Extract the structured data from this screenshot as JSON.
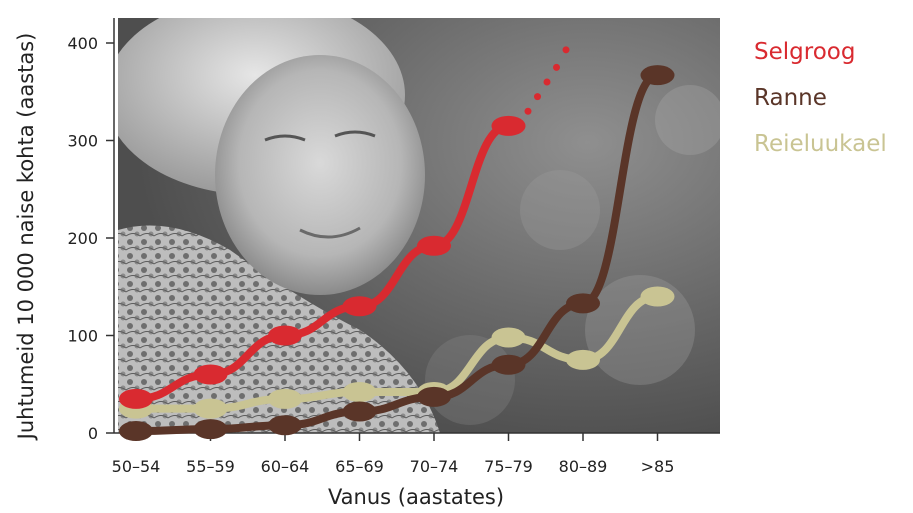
{
  "chart_data": {
    "type": "line",
    "categories": [
      "50–54",
      "55–59",
      "60–64",
      "65–69",
      "70–74",
      "75–79",
      "80–89",
      ">85"
    ],
    "series": [
      {
        "name": "Selgroog",
        "color": "#d92a30",
        "values": [
          35,
          60,
          100,
          130,
          192,
          315,
          null,
          null
        ],
        "projection": [
          330,
          345,
          360,
          375,
          393
        ]
      },
      {
        "name": "Ranne",
        "color": "#5a3528",
        "values": [
          2,
          4,
          8,
          22,
          37,
          70,
          133,
          367
        ]
      },
      {
        "name": "Reieluukael",
        "color": "#c9c493",
        "values": [
          25,
          25,
          35,
          42,
          42,
          98,
          75,
          140
        ]
      }
    ],
    "xlabel": "Vanus (aastates)",
    "ylabel": "Juhtumeid 10 000 naise kohta (aastas)",
    "yticks": [
      0,
      100,
      200,
      300,
      400
    ],
    "ylim": [
      0,
      400
    ],
    "legend_position": "right",
    "background": "black-and-white photograph of an elderly woman"
  }
}
